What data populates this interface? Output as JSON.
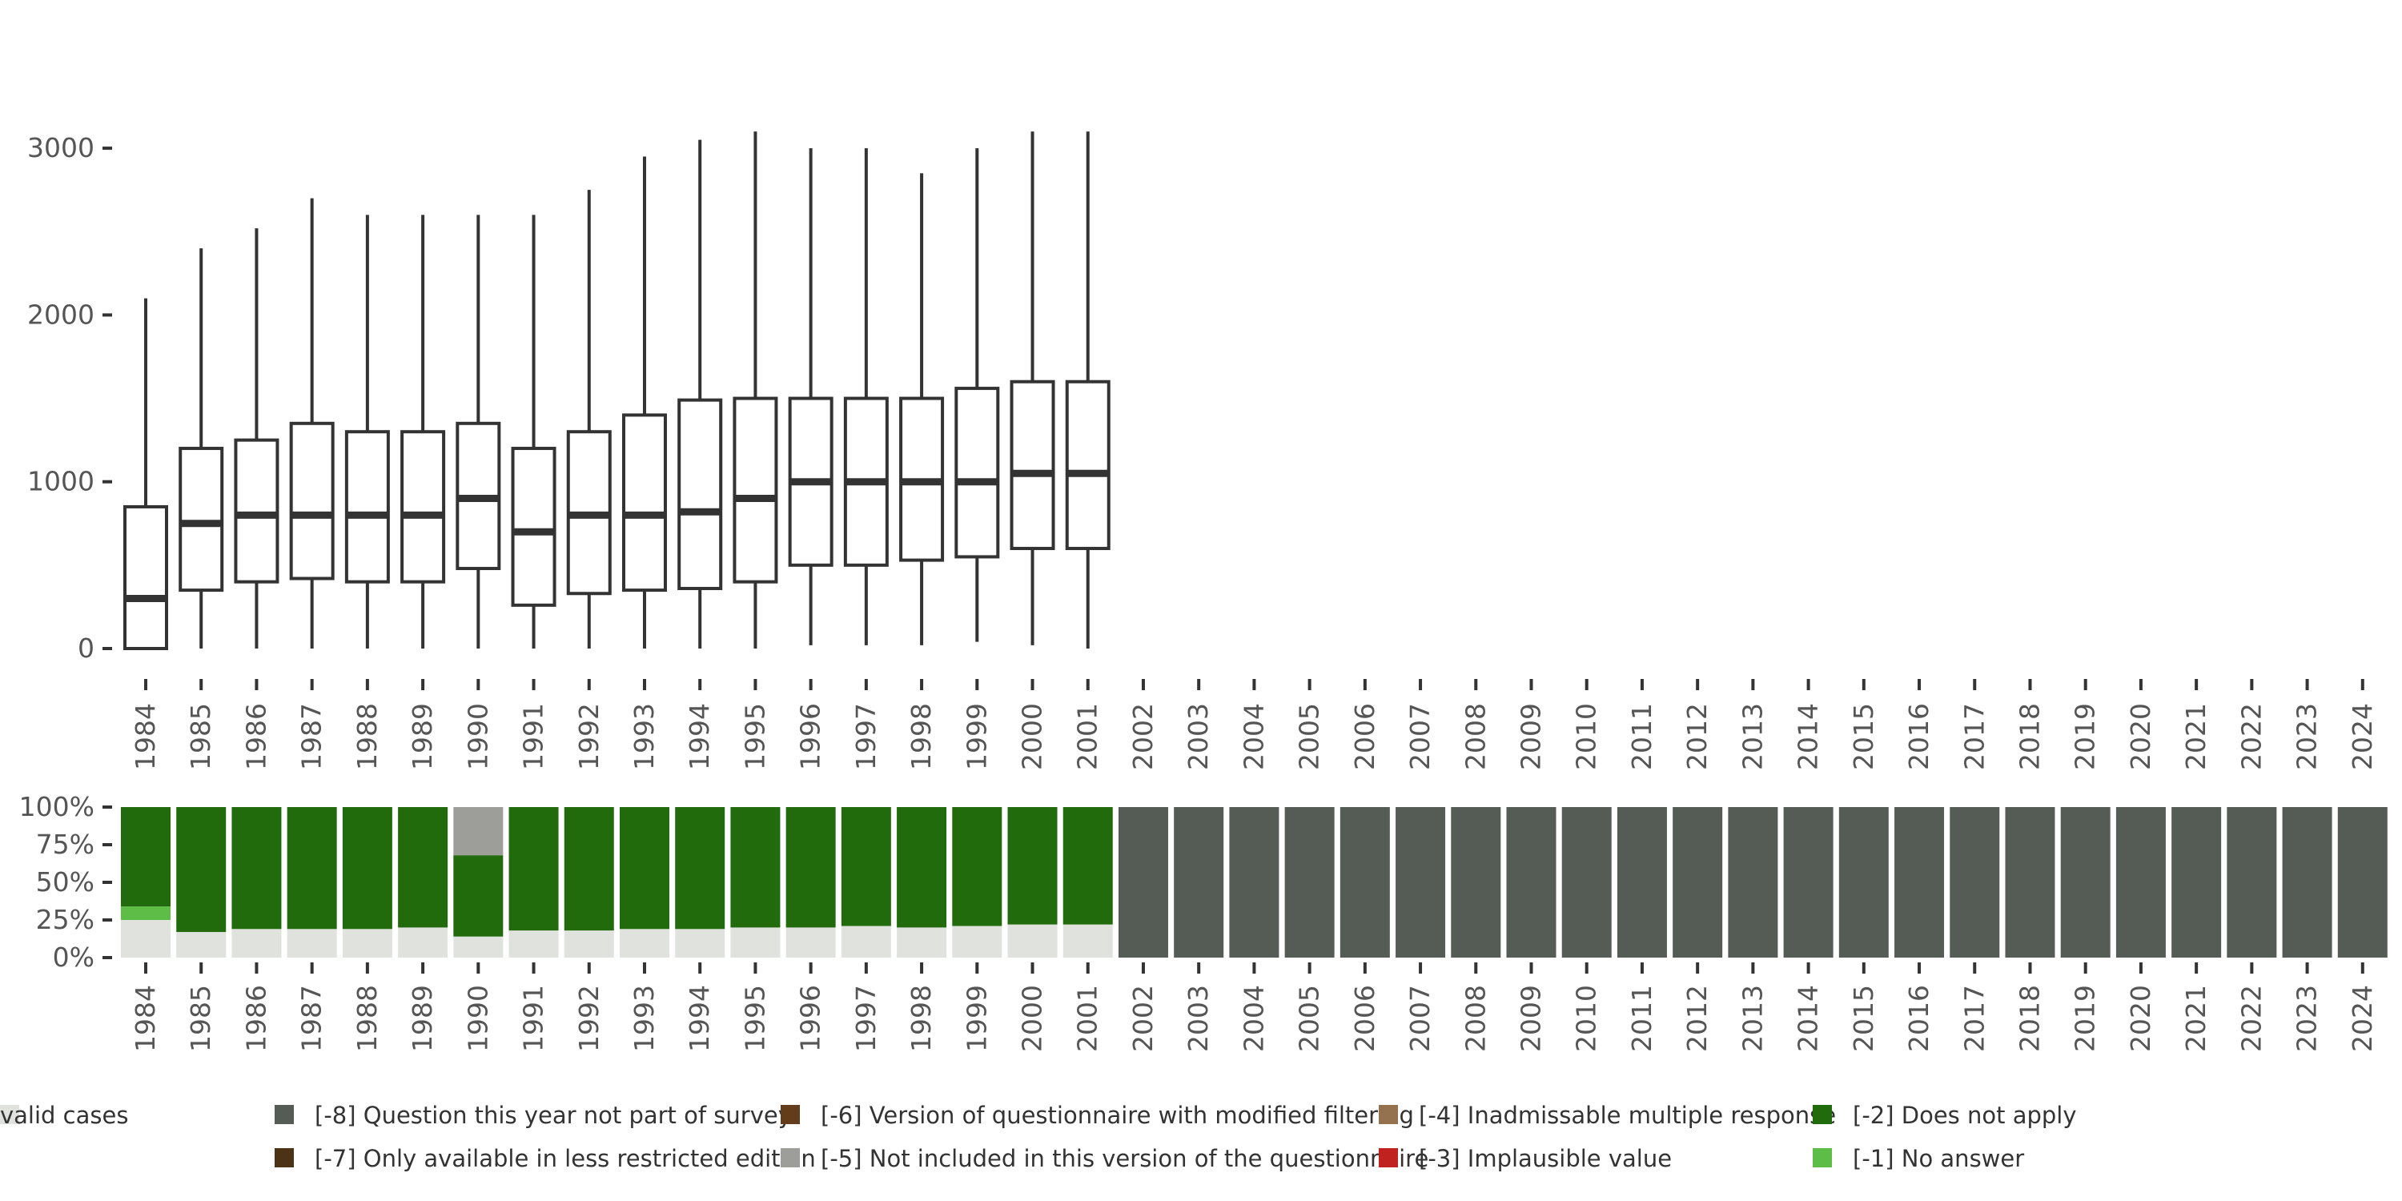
{
  "chart_data": [
    {
      "type": "boxplot",
      "title": "",
      "xlabel": "",
      "ylabel": "",
      "ylim": [
        0,
        3100
      ],
      "yticks": [
        0,
        1000,
        2000,
        3000
      ],
      "ytick_labels": [
        "0",
        "1000",
        "2000",
        "3000"
      ],
      "categories": [
        "1984",
        "1985",
        "1986",
        "1987",
        "1988",
        "1989",
        "1990",
        "1991",
        "1992",
        "1993",
        "1994",
        "1995",
        "1996",
        "1997",
        "1998",
        "1999",
        "2000",
        "2001",
        "2002",
        "2003",
        "2004",
        "2005",
        "2006",
        "2007",
        "2008",
        "2009",
        "2010",
        "2011",
        "2012",
        "2013",
        "2014",
        "2015",
        "2016",
        "2017",
        "2018",
        "2019",
        "2020",
        "2021",
        "2022",
        "2023",
        "2024"
      ],
      "boxes": [
        {
          "year": "1984",
          "min": 0,
          "q1": 0,
          "median": 300,
          "q3": 850,
          "max": 2100
        },
        {
          "year": "1985",
          "min": 0,
          "q1": 350,
          "median": 750,
          "q3": 1200,
          "max": 2400
        },
        {
          "year": "1986",
          "min": 0,
          "q1": 400,
          "median": 800,
          "q3": 1250,
          "max": 2520
        },
        {
          "year": "1987",
          "min": 0,
          "q1": 420,
          "median": 800,
          "q3": 1350,
          "max": 2700
        },
        {
          "year": "1988",
          "min": 0,
          "q1": 400,
          "median": 800,
          "q3": 1300,
          "max": 2600
        },
        {
          "year": "1989",
          "min": 0,
          "q1": 400,
          "median": 800,
          "q3": 1300,
          "max": 2600
        },
        {
          "year": "1990",
          "min": 0,
          "q1": 480,
          "median": 900,
          "q3": 1350,
          "max": 2600
        },
        {
          "year": "1991",
          "min": 0,
          "q1": 260,
          "median": 700,
          "q3": 1200,
          "max": 2600
        },
        {
          "year": "1992",
          "min": 0,
          "q1": 330,
          "median": 800,
          "q3": 1300,
          "max": 2750
        },
        {
          "year": "1993",
          "min": 0,
          "q1": 350,
          "median": 800,
          "q3": 1400,
          "max": 2950
        },
        {
          "year": "1994",
          "min": 0,
          "q1": 360,
          "median": 820,
          "q3": 1490,
          "max": 3050
        },
        {
          "year": "1995",
          "min": 0,
          "q1": 400,
          "median": 900,
          "q3": 1500,
          "max": 3100
        },
        {
          "year": "1996",
          "min": 20,
          "q1": 500,
          "median": 1000,
          "q3": 1500,
          "max": 3000
        },
        {
          "year": "1997",
          "min": 20,
          "q1": 500,
          "median": 1000,
          "q3": 1500,
          "max": 3000
        },
        {
          "year": "1998",
          "min": 20,
          "q1": 530,
          "median": 1000,
          "q3": 1500,
          "max": 2850
        },
        {
          "year": "1999",
          "min": 40,
          "q1": 550,
          "median": 1000,
          "q3": 1560,
          "max": 3000
        },
        {
          "year": "2000",
          "min": 20,
          "q1": 600,
          "median": 1050,
          "q3": 1600,
          "max": 3100
        },
        {
          "year": "2001",
          "min": 0,
          "q1": 600,
          "median": 1050,
          "q3": 1600,
          "max": 3100
        }
      ]
    },
    {
      "type": "stacked_bar",
      "title": "",
      "ylim": [
        0,
        1
      ],
      "yticks": [
        0,
        0.25,
        0.5,
        0.75,
        1.0
      ],
      "ytick_labels": [
        "0%",
        "25%",
        "50%",
        "75%",
        "100%"
      ],
      "categories": [
        "1984",
        "1985",
        "1986",
        "1987",
        "1988",
        "1989",
        "1990",
        "1991",
        "1992",
        "1993",
        "1994",
        "1995",
        "1996",
        "1997",
        "1998",
        "1999",
        "2000",
        "2001",
        "2002",
        "2003",
        "2004",
        "2005",
        "2006",
        "2007",
        "2008",
        "2009",
        "2010",
        "2011",
        "2012",
        "2013",
        "2014",
        "2015",
        "2016",
        "2017",
        "2018",
        "2019",
        "2020",
        "2021",
        "2022",
        "2023",
        "2024"
      ],
      "series": [
        {
          "name": "valid cases",
          "color": "#e0e2de",
          "values": [
            0.25,
            0.17,
            0.19,
            0.19,
            0.19,
            0.2,
            0.14,
            0.18,
            0.18,
            0.19,
            0.19,
            0.2,
            0.2,
            0.21,
            0.2,
            0.21,
            0.22,
            0.22,
            0,
            0,
            0,
            0,
            0,
            0,
            0,
            0,
            0,
            0,
            0,
            0,
            0,
            0,
            0,
            0,
            0,
            0,
            0,
            0,
            0,
            0,
            0
          ]
        },
        {
          "name": "[-1] No answer",
          "color": "#5ebd46",
          "values": [
            0.09,
            0,
            0,
            0,
            0,
            0,
            0,
            0,
            0,
            0,
            0,
            0,
            0,
            0,
            0,
            0,
            0,
            0,
            0,
            0,
            0,
            0,
            0,
            0,
            0,
            0,
            0,
            0,
            0,
            0,
            0,
            0,
            0,
            0,
            0,
            0,
            0,
            0,
            0,
            0,
            0
          ]
        },
        {
          "name": "[-2] Does not apply",
          "color": "#226b0c",
          "values": [
            0.66,
            0.83,
            0.81,
            0.81,
            0.81,
            0.8,
            0.54,
            0.82,
            0.82,
            0.81,
            0.81,
            0.8,
            0.8,
            0.79,
            0.8,
            0.79,
            0.78,
            0.78,
            0,
            0,
            0,
            0,
            0,
            0,
            0,
            0,
            0,
            0,
            0,
            0,
            0,
            0,
            0,
            0,
            0,
            0,
            0,
            0,
            0,
            0,
            0
          ]
        },
        {
          "name": "[-5] Not included in this version of the questionnaire",
          "color": "#9d9e9a",
          "values": [
            0,
            0,
            0,
            0,
            0,
            0,
            0.32,
            0,
            0,
            0,
            0,
            0,
            0,
            0,
            0,
            0,
            0,
            0,
            0,
            0,
            0,
            0,
            0,
            0,
            0,
            0,
            0,
            0,
            0,
            0,
            0,
            0,
            0,
            0,
            0,
            0,
            0,
            0,
            0,
            0,
            0
          ]
        },
        {
          "name": "[-8] Question this year not part of survey",
          "color": "#555c56",
          "values": [
            0,
            0,
            0,
            0,
            0,
            0,
            0,
            0,
            0,
            0,
            0,
            0,
            0,
            0,
            0,
            0,
            0,
            0,
            1,
            1,
            1,
            1,
            1,
            1,
            1,
            1,
            1,
            1,
            1,
            1,
            1,
            1,
            1,
            1,
            1,
            1,
            1,
            1,
            1,
            1,
            1
          ]
        }
      ]
    }
  ],
  "legend": {
    "placement": "bottom",
    "items": [
      {
        "label": "[-8] Question this year not part of survey",
        "color": "#555c56"
      },
      {
        "label": "[-7] Only available in less restricted edition",
        "color": "#4c3316"
      },
      {
        "label": "[-6] Version of questionnaire with modified filtering",
        "color": "#633c1c"
      },
      {
        "label": "[-5] Not included in this version of the questionnaire",
        "color": "#9d9e9a"
      },
      {
        "label": "[-4] Inadmissable multiple response",
        "color": "#94714f"
      },
      {
        "label": "[-3] Implausible value",
        "color": "#c0221f"
      },
      {
        "label": "[-2] Does not apply",
        "color": "#226b0c"
      },
      {
        "label": "[-1] No answer",
        "color": "#5ebd46"
      },
      {
        "label": "valid cases",
        "color": "#e0e2de"
      }
    ]
  }
}
